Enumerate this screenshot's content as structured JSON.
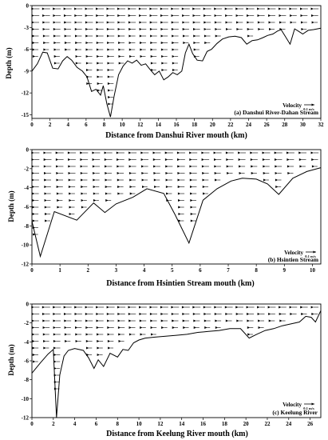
{
  "figure": {
    "units_shown": "0.1 m/s"
  },
  "chart_data": [
    {
      "type": "line",
      "caption": "(a) Danshui River-Dahan Stream",
      "xlabel": "Distance from Danshui River mouth (km)",
      "ylabel": "Depth (m)",
      "velocity_label": "Velocity",
      "velocity_unit": "0.1 m/s",
      "xlim": [
        0,
        32
      ],
      "ylim": [
        -15.5,
        0
      ],
      "x_ticks": [
        0,
        2,
        4,
        6,
        8,
        10,
        12,
        14,
        16,
        18,
        20,
        22,
        24,
        26,
        28,
        30,
        32
      ],
      "y_ticks": [
        0,
        -3,
        -6,
        -9,
        -12,
        -15
      ],
      "grid": false,
      "series": [
        {
          "x": [
            0,
            0.6,
            1.2,
            1.7,
            2.3,
            2.9,
            3.4,
            3.9,
            4.4,
            5.0,
            5.6,
            6.1,
            6.6,
            7.1,
            7.6,
            7.9,
            8.3,
            8.7,
            9.1,
            9.6,
            10.1,
            10.6,
            11.1,
            11.6,
            12.1,
            12.6,
            13.1,
            13.6,
            14.1,
            14.6,
            15.1,
            15.6,
            16.1,
            16.6,
            17.0,
            17.4,
            17.8,
            18.3,
            18.9,
            19.4,
            19.9,
            20.5,
            21.1,
            21.8,
            22.5,
            23.2,
            23.8,
            24.4,
            25.0,
            25.6,
            26.1,
            26.7,
            27.2,
            27.6,
            28.1,
            28.6,
            29.1,
            29.5,
            30.0,
            30.6,
            31.2,
            32.0
          ],
          "y": [
            -9.0,
            -8.0,
            -6.4,
            -6.5,
            -8.6,
            -8.7,
            -7.6,
            -7.0,
            -7.5,
            -8.5,
            -9.0,
            -9.8,
            -11.8,
            -11.5,
            -12.3,
            -11.0,
            -13.5,
            -15.3,
            -12.5,
            -9.5,
            -8.3,
            -7.6,
            -7.9,
            -7.5,
            -8.2,
            -8.0,
            -8.8,
            -9.5,
            -9.0,
            -10.2,
            -9.8,
            -9.2,
            -9.5,
            -9.0,
            -6.5,
            -5.3,
            -6.6,
            -7.5,
            -7.6,
            -6.3,
            -6.0,
            -5.2,
            -4.6,
            -4.3,
            -4.2,
            -4.4,
            -5.3,
            -4.8,
            -4.7,
            -4.4,
            -4.1,
            -3.9,
            -3.5,
            -3.3,
            -4.3,
            -5.3,
            -3.2,
            -3.5,
            -3.9,
            -3.4,
            -3.3,
            -3.1
          ]
        }
      ]
    },
    {
      "type": "line",
      "caption": "(b) Hsintien Stream",
      "xlabel": "Distance from Hsintien Stream mouth (km)",
      "ylabel": "Depth (m)",
      "velocity_label": "Velocity",
      "velocity_unit": "0.1 m/s",
      "xlim": [
        0,
        10.3
      ],
      "ylim": [
        -12,
        0
      ],
      "x_ticks": [
        0,
        1,
        2,
        3,
        4,
        5,
        6,
        7,
        8,
        9,
        10
      ],
      "y_ticks": [
        0,
        -2,
        -4,
        -6,
        -8,
        -10,
        -12
      ],
      "grid": false,
      "series": [
        {
          "x": [
            0,
            0.3,
            0.8,
            1.6,
            2.2,
            2.6,
            3.0,
            3.6,
            4.1,
            4.7,
            5.1,
            5.6,
            6.1,
            6.6,
            7.1,
            7.5,
            8.0,
            8.4,
            8.8,
            9.3,
            9.8,
            10.3
          ],
          "y": [
            -7.5,
            -11.2,
            -6.5,
            -7.4,
            -5.6,
            -6.6,
            -5.7,
            -5.0,
            -4.1,
            -4.6,
            -6.8,
            -9.8,
            -5.3,
            -4.1,
            -3.3,
            -3.0,
            -3.1,
            -3.6,
            -4.7,
            -3.0,
            -2.3,
            -1.9
          ]
        }
      ]
    },
    {
      "type": "line",
      "caption": "(c) Keelung River",
      "xlabel": "Distance from Keelung River mouth (km)",
      "ylabel": "Depth (m)",
      "velocity_label": "Velocity",
      "velocity_unit": "0.1 m/s",
      "xlim": [
        0,
        27
      ],
      "ylim": [
        -12,
        0
      ],
      "x_ticks": [
        0,
        2,
        4,
        6,
        8,
        10,
        12,
        14,
        16,
        18,
        20,
        22,
        24,
        26
      ],
      "y_ticks": [
        0,
        -2,
        -4,
        -6,
        -8,
        -10,
        -12
      ],
      "grid": false,
      "series": [
        {
          "x": [
            0,
            0.8,
            1.5,
            2.0,
            2.3,
            2.6,
            3.0,
            3.4,
            4.0,
            4.8,
            5.3,
            5.8,
            6.2,
            6.7,
            7.3,
            8.0,
            8.5,
            9.0,
            9.5,
            10.0,
            10.6,
            11.5,
            12.5,
            13.5,
            14.5,
            15.5,
            16.5,
            17.5,
            18.5,
            19.5,
            20.3,
            21.0,
            21.8,
            22.6,
            23.4,
            24.2,
            25.0,
            25.6,
            26.1,
            26.5,
            27.0
          ],
          "y": [
            -7.3,
            -6.2,
            -5.3,
            -4.8,
            -12.0,
            -7.5,
            -5.5,
            -4.9,
            -4.7,
            -4.9,
            -5.7,
            -6.8,
            -5.9,
            -6.6,
            -5.2,
            -5.6,
            -4.8,
            -4.9,
            -4.1,
            -3.8,
            -3.6,
            -3.5,
            -3.4,
            -3.3,
            -3.2,
            -3.0,
            -2.9,
            -2.8,
            -2.6,
            -2.6,
            -3.6,
            -3.2,
            -2.8,
            -2.6,
            -2.3,
            -2.1,
            -1.9,
            -1.3,
            -1.4,
            -1.9,
            -0.7
          ]
        }
      ]
    }
  ]
}
